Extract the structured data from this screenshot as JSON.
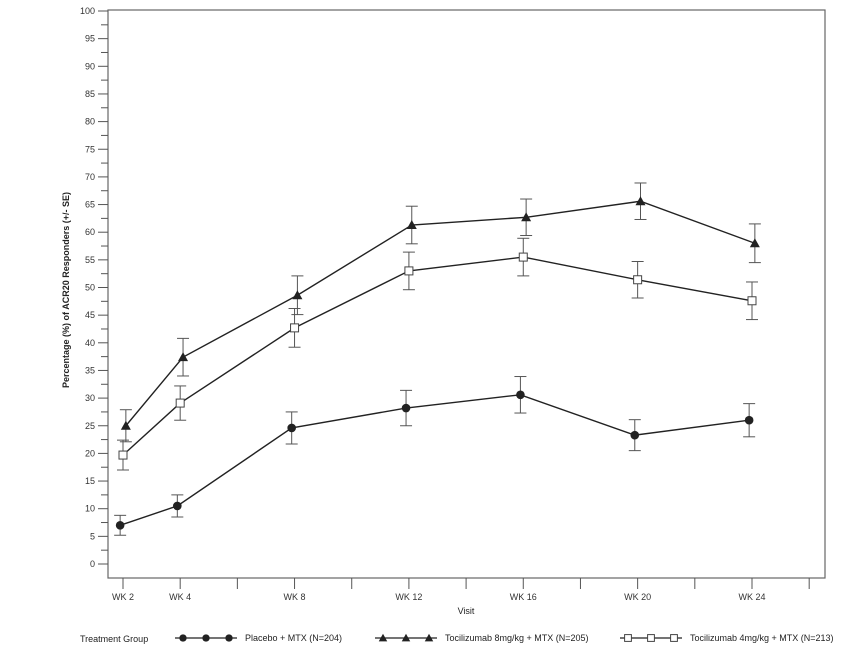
{
  "chart_data": {
    "type": "line",
    "title": "",
    "xlabel": "Visit",
    "ylabel": "Percentage (%) of ACR20 Responders (+/- SE)",
    "ylim": [
      0,
      100
    ],
    "y_major_ticks": [
      0,
      5,
      10,
      15,
      20,
      25,
      30,
      35,
      40,
      45,
      50,
      55,
      60,
      65,
      70,
      75,
      80,
      85,
      90,
      95,
      100
    ],
    "y_minor_step": 2.5,
    "categories": [
      "WK 2",
      "WK 4",
      "WK 8",
      "WK 12",
      "WK 16",
      "WK 20",
      "WK 24"
    ],
    "x_weeks": [
      2,
      4,
      8,
      12,
      16,
      20,
      24
    ],
    "x_range_weeks": [
      1.5,
      26
    ],
    "x_tick_weeks": [
      2,
      4,
      6,
      8,
      10,
      12,
      14,
      16,
      18,
      20,
      22,
      24,
      26
    ],
    "grid": false,
    "legend_position": "bottom",
    "legend_title": "Treatment Group",
    "series": [
      {
        "name": "Placebo + MTX  (N=204)",
        "marker": "filled-circle",
        "values": [
          7.0,
          10.5,
          24.6,
          28.2,
          30.6,
          23.3,
          26.0
        ],
        "se": [
          1.8,
          2.0,
          2.9,
          3.2,
          3.3,
          2.8,
          3.0
        ],
        "x_offset": -0.1
      },
      {
        "name": "Tocilizumab 8mg/kg + MTX (N=205)",
        "marker": "filled-triangle",
        "values": [
          25.0,
          37.4,
          48.6,
          61.3,
          62.7,
          65.6,
          58.0
        ],
        "se": [
          2.9,
          3.4,
          3.5,
          3.4,
          3.3,
          3.3,
          3.5
        ],
        "x_offset": 0.1
      },
      {
        "name": "Tocilizumab 4mg/kg + MTX (N=213)",
        "marker": "open-square",
        "values": [
          19.7,
          29.1,
          42.7,
          53.0,
          55.5,
          51.4,
          47.6
        ],
        "se": [
          2.7,
          3.1,
          3.5,
          3.4,
          3.4,
          3.3,
          3.4
        ],
        "x_offset": 0.0
      }
    ]
  },
  "colors": {
    "line": "#222222",
    "axis": "#555555",
    "errorbar": "#555555"
  }
}
